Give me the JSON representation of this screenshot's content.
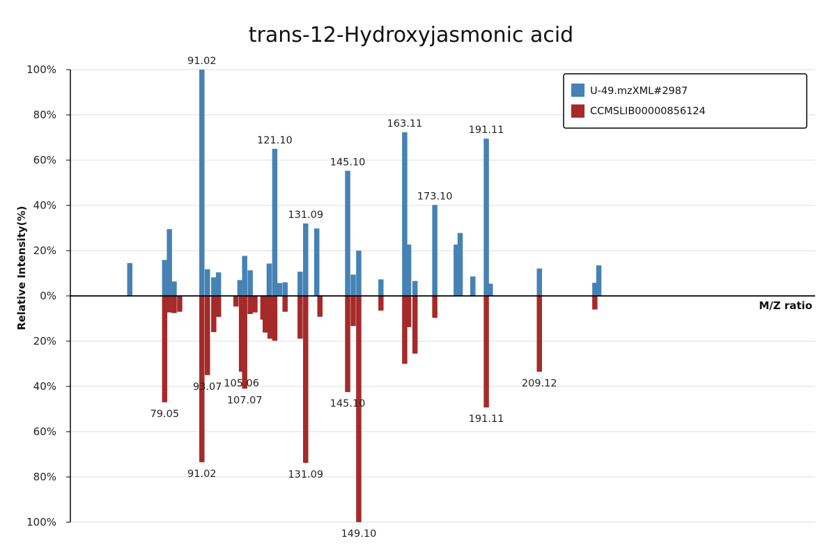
{
  "chart_data": {
    "type": "bar",
    "title": "trans-12-Hydroxyjasmonic acid",
    "ylabel": "Relative Intensity(%)",
    "xlabel": "M/Z ratio",
    "ylim": [
      -100,
      100
    ],
    "xlim": [
      53,
      147
    ],
    "y_ticks": [
      {
        "value": 100,
        "label": "100%"
      },
      {
        "value": 80,
        "label": "80%"
      },
      {
        "value": 60,
        "label": "60%"
      },
      {
        "value": 40,
        "label": "40%"
      },
      {
        "value": 20,
        "label": "20%"
      },
      {
        "value": 0,
        "label": "0%"
      },
      {
        "value": -20,
        "label": "20%"
      },
      {
        "value": -40,
        "label": "40%"
      },
      {
        "value": -60,
        "label": "60%"
      },
      {
        "value": -80,
        "label": "80%"
      },
      {
        "value": -100,
        "label": "100%"
      }
    ],
    "grid": true,
    "legend_position": "top-right",
    "series": [
      {
        "name": "U-49.mzXML#2987",
        "color": "#4682b4",
        "direction": "up",
        "peaks": [
          {
            "mz": 60.5,
            "intensity": 14.5
          },
          {
            "mz": 64.9,
            "intensity": 15.9
          },
          {
            "mz": 65.5,
            "intensity": 29.5
          },
          {
            "mz": 66.1,
            "intensity": 6.4
          },
          {
            "mz": 69.6,
            "intensity": 100,
            "label": "91.02"
          },
          {
            "mz": 70.3,
            "intensity": 11.8
          },
          {
            "mz": 71.1,
            "intensity": 8.2
          },
          {
            "mz": 71.7,
            "intensity": 10.4
          },
          {
            "mz": 74.4,
            "intensity": 7.0
          },
          {
            "mz": 75.0,
            "intensity": 17.7
          },
          {
            "mz": 75.7,
            "intensity": 11.3
          },
          {
            "mz": 78.1,
            "intensity": 14.3
          },
          {
            "mz": 78.8,
            "intensity": 65,
            "label": "121.10"
          },
          {
            "mz": 79.4,
            "intensity": 5.7
          },
          {
            "mz": 80.1,
            "intensity": 6.0
          },
          {
            "mz": 82.0,
            "intensity": 10.7
          },
          {
            "mz": 82.7,
            "intensity": 32,
            "label": "131.09"
          },
          {
            "mz": 84.1,
            "intensity": 29.8
          },
          {
            "mz": 88.0,
            "intensity": 55.3,
            "label": "145.10"
          },
          {
            "mz": 88.7,
            "intensity": 9.4
          },
          {
            "mz": 89.4,
            "intensity": 20
          },
          {
            "mz": 92.2,
            "intensity": 7.3
          },
          {
            "mz": 95.2,
            "intensity": 72.3,
            "label": "163.11"
          },
          {
            "mz": 95.7,
            "intensity": 22.7
          },
          {
            "mz": 96.5,
            "intensity": 6.6
          },
          {
            "mz": 99.0,
            "intensity": 40.2,
            "label": "173.10"
          },
          {
            "mz": 101.7,
            "intensity": 22.7
          },
          {
            "mz": 102.2,
            "intensity": 27.8
          },
          {
            "mz": 103.8,
            "intensity": 8.6
          },
          {
            "mz": 105.5,
            "intensity": 69.5,
            "label": "191.11"
          },
          {
            "mz": 106.0,
            "intensity": 5.4
          },
          {
            "mz": 112.2,
            "intensity": 12.1
          },
          {
            "mz": 119.2,
            "intensity": 5.8
          },
          {
            "mz": 119.7,
            "intensity": 13.5
          }
        ]
      },
      {
        "name": "CCMSLIB00000856124",
        "color": "#a52a2a",
        "direction": "down",
        "peaks": [
          {
            "mz": 64.9,
            "intensity": 47,
            "label": "79.05"
          },
          {
            "mz": 65.5,
            "intensity": 7.3
          },
          {
            "mz": 66.1,
            "intensity": 7.6
          },
          {
            "mz": 66.8,
            "intensity": 7.0
          },
          {
            "mz": 69.6,
            "intensity": 73.5,
            "label": "91.02"
          },
          {
            "mz": 70.3,
            "intensity": 35
          },
          {
            "mz": 71.1,
            "intensity": 16
          },
          {
            "mz": 71.7,
            "intensity": 9.3
          },
          {
            "mz": 73.9,
            "intensity": 4.7
          },
          {
            "mz": 74.6,
            "intensity": 33.5
          },
          {
            "mz": 75.0,
            "intensity": 41
          },
          {
            "mz": 75.7,
            "intensity": 8.0
          },
          {
            "mz": 76.3,
            "intensity": 7.3
          },
          {
            "mz": 77.3,
            "intensity": 10.5
          },
          {
            "mz": 77.6,
            "intensity": 16.2
          },
          {
            "mz": 78.2,
            "intensity": 18.9
          },
          {
            "mz": 78.8,
            "intensity": 19.8
          },
          {
            "mz": 80.1,
            "intensity": 7.0
          },
          {
            "mz": 82.0,
            "intensity": 18.9
          },
          {
            "mz": 82.7,
            "intensity": 73.8,
            "label": "131.09"
          },
          {
            "mz": 84.5,
            "intensity": 9.2
          },
          {
            "mz": 88.0,
            "intensity": 42.5,
            "label": "145.10"
          },
          {
            "mz": 88.7,
            "intensity": 13.3
          },
          {
            "mz": 89.4,
            "intensity": 100,
            "label": "149.10"
          },
          {
            "mz": 92.2,
            "intensity": 6.5
          },
          {
            "mz": 95.2,
            "intensity": 30
          },
          {
            "mz": 95.7,
            "intensity": 13.8
          },
          {
            "mz": 96.5,
            "intensity": 25.5
          },
          {
            "mz": 99.0,
            "intensity": 9.7
          },
          {
            "mz": 105.5,
            "intensity": 49.3,
            "label": "191.11"
          },
          {
            "mz": 112.2,
            "intensity": 33.5,
            "label": "209.12"
          },
          {
            "mz": 119.2,
            "intensity": 6.0
          }
        ],
        "extra_labels": [
          {
            "text": "93.07",
            "mz": 70.3,
            "intensity": 35
          },
          {
            "text": "105.06",
            "mz": 74.6,
            "intensity": 33.5
          },
          {
            "text": "107.07",
            "mz": 75.0,
            "intensity": 41
          }
        ]
      }
    ]
  }
}
